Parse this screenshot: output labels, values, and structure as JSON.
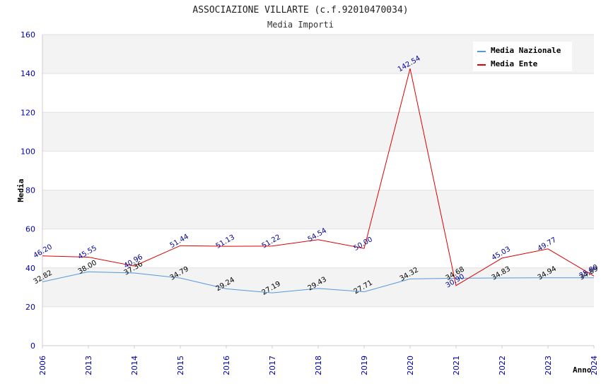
{
  "chart_data": {
    "type": "line",
    "title": "ASSOCIAZIONE VILLARTE (c.f.92010470034)",
    "subtitle": "Media Importi",
    "xlabel": "Anno",
    "ylabel": "Media",
    "ylim": [
      0,
      160
    ],
    "yticks": [
      "0",
      "20",
      "40",
      "60",
      "80",
      "100",
      "120",
      "140",
      "160"
    ],
    "categories": [
      "2006",
      "2013",
      "2014",
      "2015",
      "2016",
      "2017",
      "2018",
      "2019",
      "2020",
      "2021",
      "2022",
      "2023",
      "2024"
    ],
    "series": [
      {
        "name": "Media Nazionale",
        "color": "#5599dd",
        "values": [
          32.82,
          38.0,
          37.36,
          34.79,
          29.24,
          27.19,
          29.43,
          27.71,
          34.32,
          34.68,
          34.83,
          34.94,
          34.89
        ],
        "labels": [
          "32.82",
          "38.00",
          "37.36",
          "34.79",
          "29.24",
          "27.19",
          "29.43",
          "27.71",
          "34.32",
          "34.68",
          "34.83",
          "34.94",
          "34.89"
        ]
      },
      {
        "name": "Media Ente",
        "color": "#dd0000",
        "values": [
          46.2,
          45.55,
          40.96,
          51.44,
          51.13,
          51.22,
          54.54,
          50.0,
          142.54,
          30.9,
          45.03,
          49.77,
          35.8
        ],
        "labels": [
          "46.20",
          "45.55",
          "40.96",
          "51.44",
          "51.13",
          "51.22",
          "54.54",
          "50.00",
          "142.54",
          "30.90",
          "45.03",
          "49.77",
          "35.80"
        ]
      }
    ],
    "legend_position": "top-right",
    "grid": true
  }
}
